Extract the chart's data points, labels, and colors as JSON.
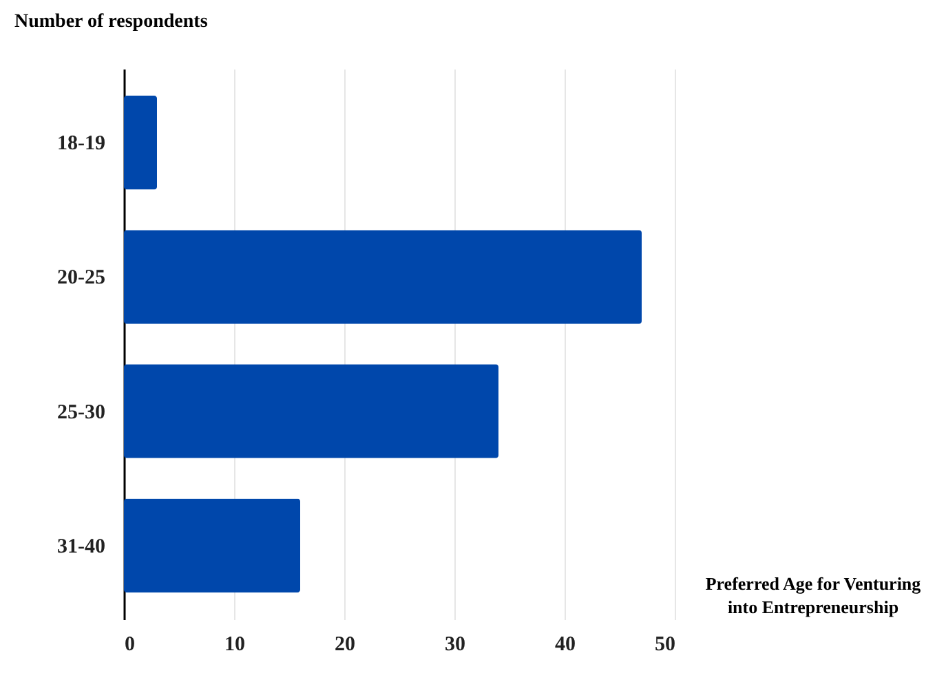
{
  "chart_data": {
    "type": "bar",
    "orientation": "horizontal",
    "xlabel": "Preferred Age for Venturing into Entrepreneurship",
    "ylabel": "Number of respondents",
    "categories": [
      "18-19",
      "20-25",
      "25-30",
      "31-40"
    ],
    "values": [
      3,
      47,
      34,
      16
    ],
    "color": "#0047ab",
    "xlim": [
      0,
      50
    ],
    "xticks": [
      0,
      10,
      20,
      30,
      40,
      50
    ],
    "grid": "x"
  }
}
